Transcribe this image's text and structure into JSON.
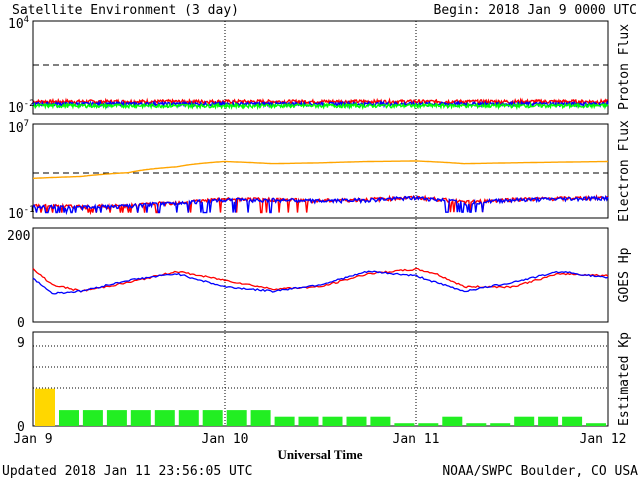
{
  "header": {
    "title": "Satellite Environment (3 day)",
    "begin": "Begin:  2018 Jan 9 0000 UTC"
  },
  "footer": {
    "updated": "Updated 2018 Jan 11 23:56:05 UTC",
    "credit": "NOAA/SWPC Boulder, CO USA"
  },
  "x_axis": {
    "label": "Universal Time",
    "ticks": [
      "Jan 9",
      "Jan 10",
      "Jan 11",
      "Jan 12"
    ]
  },
  "panels": {
    "proton": {
      "ylabel": "Proton Flux",
      "ytick_top_base": "10",
      "ytick_top_exp": "4",
      "ytick_bottom_base": "10",
      "ytick_bottom_exp": "-2"
    },
    "electron": {
      "ylabel": "Electron Flux",
      "ytick_top_base": "10",
      "ytick_top_exp": "7",
      "ytick_bottom_base": "10",
      "ytick_bottom_exp": "-1"
    },
    "hp": {
      "ylabel": "GOES Hp",
      "ytick_top": "200",
      "ytick_bottom": "0"
    },
    "kp": {
      "ylabel": "Estimated Kp",
      "ytick_top": "9",
      "ytick_bottom": "0"
    }
  },
  "colors": {
    "red": "#ff0000",
    "blue": "#0000ff",
    "green": "#00ff00",
    "orange": "#ffa500",
    "kp_quiet": "#22ee22",
    "kp_elevated": "#ffd700"
  },
  "chart_data": [
    {
      "type": "line",
      "panel": "Proton Flux",
      "yscale": "log",
      "ylim": [
        0.01,
        10000
      ],
      "x": [
        "Jan 9",
        "Jan 10",
        "Jan 11",
        "Jan 12"
      ],
      "threshold": 10,
      "series": [
        {
          "color": "red",
          "approx_level": 0.03
        },
        {
          "color": "blue",
          "approx_level": 0.02
        },
        {
          "color": "green",
          "approx_level": 0.015
        }
      ]
    },
    {
      "type": "line",
      "panel": "Electron Flux",
      "yscale": "log",
      "ylim": [
        0.1,
        10000000
      ],
      "threshold": 1000,
      "series": [
        {
          "color": "orange",
          "x_days": [
            0,
            0.25,
            0.5,
            0.75,
            1.0,
            1.25,
            1.5,
            1.75,
            2.0,
            2.25,
            2.5,
            2.75,
            3.0
          ],
          "values": [
            200,
            300,
            700,
            2500,
            8000,
            5000,
            6000,
            8000,
            9000,
            5000,
            6000,
            7000,
            8000
          ]
        },
        {
          "color": "red",
          "x_days": [
            0,
            0.25,
            0.5,
            0.75,
            1.0,
            1.25,
            1.5,
            1.75,
            2.0,
            2.25,
            2.5,
            2.75,
            3.0
          ],
          "values": [
            0.5,
            0.4,
            0.5,
            1,
            2,
            2,
            1.5,
            2,
            3,
            1,
            2,
            2.5,
            3
          ]
        },
        {
          "color": "blue",
          "x_days": [
            0,
            0.25,
            0.5,
            0.75,
            1.0,
            1.25,
            1.5,
            1.75,
            2.0,
            2.25,
            2.5,
            2.75,
            3.0
          ],
          "values": [
            0.4,
            0.35,
            0.45,
            0.9,
            1.8,
            1.8,
            1.4,
            1.8,
            2.8,
            0.9,
            1.8,
            2.2,
            2.8
          ]
        }
      ]
    },
    {
      "type": "line",
      "panel": "GOES Hp",
      "ylim": [
        0,
        200
      ],
      "series": [
        {
          "color": "red",
          "x_days": [
            0,
            0.1,
            0.25,
            0.5,
            0.75,
            1.0,
            1.25,
            1.5,
            1.75,
            2.0,
            2.1,
            2.25,
            2.5,
            2.75,
            3.0
          ],
          "values": [
            120,
            85,
            70,
            90,
            115,
            95,
            75,
            80,
            110,
            120,
            110,
            80,
            80,
            110,
            105
          ]
        },
        {
          "color": "blue",
          "x_days": [
            0,
            0.1,
            0.25,
            0.5,
            0.75,
            1.0,
            1.25,
            1.5,
            1.75,
            2.0,
            2.1,
            2.25,
            2.5,
            2.75,
            3.0
          ],
          "values": [
            100,
            65,
            70,
            95,
            110,
            80,
            70,
            85,
            115,
            105,
            90,
            70,
            90,
            115,
            100
          ]
        }
      ]
    },
    {
      "type": "bar",
      "panel": "Estimated Kp",
      "ylim": [
        0,
        9
      ],
      "bar_interval_hours": 3,
      "values": [
        4,
        1.7,
        1.7,
        1.7,
        1.7,
        1.7,
        1.7,
        1.7,
        1.7,
        1.7,
        1,
        1,
        1,
        1,
        1,
        0.3,
        0.3,
        1,
        0.3,
        0.3,
        1,
        1,
        1,
        0.3
      ]
    }
  ]
}
